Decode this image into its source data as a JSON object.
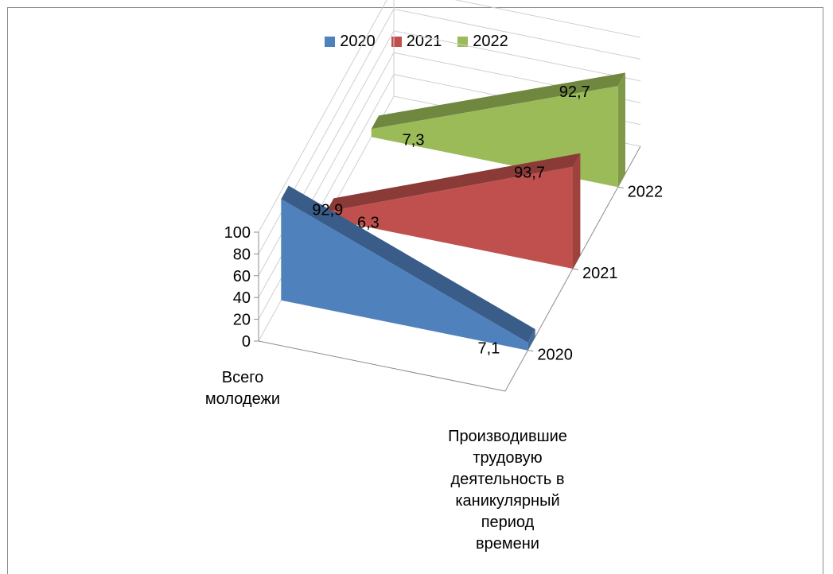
{
  "chart_data": {
    "type": "area",
    "variant": "3d-area",
    "categories": [
      "Всего молодежи",
      "Производившие трудовую деятельность в каникулярный период времени"
    ],
    "series": [
      {
        "name": "2020",
        "values": [
          92.9,
          7.1
        ],
        "color": "#4f81bd"
      },
      {
        "name": "2021",
        "values": [
          6.3,
          93.7
        ],
        "color": "#c0504d"
      },
      {
        "name": "2022",
        "values": [
          7.3,
          92.7
        ],
        "color": "#9bbb59"
      }
    ],
    "data_labels": [
      "92,9",
      "7,1",
      "6,3",
      "93,7",
      "7,3",
      "92,7"
    ],
    "z_tick_labels": [
      "100",
      "80",
      "60",
      "40",
      "20",
      "0"
    ],
    "depth_labels": [
      "2020",
      "2021",
      "2022"
    ],
    "ylim": [
      0,
      100
    ],
    "legend_position": "top",
    "grid": true
  },
  "legend": [
    {
      "label": "2020",
      "color": "#4f81bd"
    },
    {
      "label": "2021",
      "color": "#c0504d"
    },
    {
      "label": "2022",
      "color": "#9bbb59"
    }
  ],
  "categories_text": {
    "first": "Всего\nмолодежи",
    "second": "Производившие\nтрудовую\nдеятельность в\nканикулярный\nпериод\nвремени"
  }
}
